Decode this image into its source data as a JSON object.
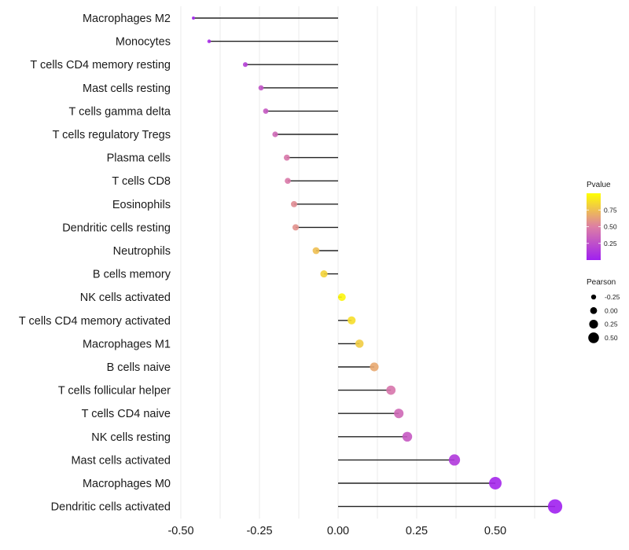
{
  "chart_data": {
    "type": "lollipop",
    "title": "",
    "xlabel": "",
    "ylabel": "",
    "xlim": [
      -0.52,
      0.72
    ],
    "x_ticks": [
      -0.5,
      -0.25,
      0.0,
      0.25,
      0.5
    ],
    "x_tick_labels": [
      "-0.50",
      "-0.25",
      "0.00",
      "0.25",
      "0.50"
    ],
    "grid": true,
    "categories": [
      "Macrophages M2",
      "Monocytes",
      "T cells CD4 memory resting",
      "Mast cells resting",
      "T cells gamma delta",
      "T cells regulatory  Tregs ",
      "Plasma cells",
      "T cells CD8",
      "Eosinophils",
      "Dendritic cells resting",
      "Neutrophils",
      "B cells memory",
      "NK cells activated",
      "T cells CD4 memory activated",
      "Macrophages M1",
      "B cells naive",
      "T cells follicular helper",
      "T cells CD4 naive",
      "NK cells resting",
      "Mast cells activated",
      "Macrophages M0",
      "Dendritic cells activated"
    ],
    "series": [
      {
        "name": "Pearson",
        "values": [
          -0.46,
          -0.41,
          -0.295,
          -0.245,
          -0.23,
          -0.2,
          -0.163,
          -0.16,
          -0.14,
          -0.135,
          -0.07,
          -0.045,
          0.012,
          0.043,
          0.068,
          0.115,
          0.168,
          0.193,
          0.22,
          0.37,
          0.5,
          0.69
        ]
      },
      {
        "name": "Pvalue",
        "values": [
          0.02,
          0.06,
          0.17,
          0.27,
          0.3,
          0.38,
          0.46,
          0.47,
          0.55,
          0.57,
          0.75,
          0.83,
          0.96,
          0.87,
          0.8,
          0.66,
          0.45,
          0.38,
          0.3,
          0.13,
          0.03,
          0.001
        ]
      }
    ],
    "legend": {
      "position": "right",
      "color": {
        "title": "Pvalue",
        "ticks": [
          0.25,
          0.5,
          0.75
        ],
        "tick_labels": [
          "0.25",
          "0.50",
          "0.75"
        ],
        "range": [
          0,
          1
        ],
        "low_color": "#a020f0",
        "mid_color": "#dd7fa4",
        "high_color": "#ffff00"
      },
      "size": {
        "title": "Pearson",
        "values": [
          -0.25,
          0.0,
          0.25,
          0.5
        ],
        "labels": [
          "-0.25",
          "0.00",
          "0.25",
          "0.50"
        ]
      }
    }
  }
}
